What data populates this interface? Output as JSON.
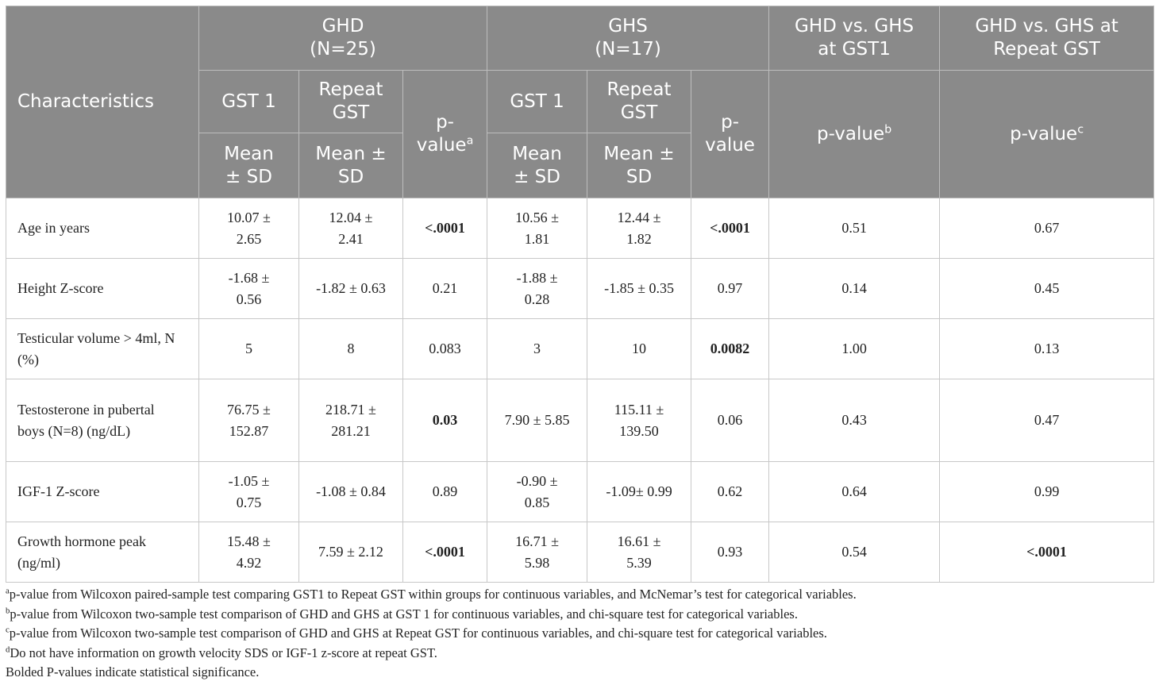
{
  "header": {
    "characteristics": "Characteristics",
    "groups": [
      {
        "name": "GHD",
        "n": "(N=25)"
      },
      {
        "name": "GHS",
        "n": "(N=17)"
      }
    ],
    "gst1": "GST 1",
    "repeat_gst": "Repeat GST",
    "mean_sd": "Mean ± SD",
    "p_value_prefix": "p-value",
    "cmp1": "GHD vs. GHS at GST1",
    "cmp2": "GHD vs. GHS at Repeat GST",
    "sup_a": "a",
    "sup_b": "b",
    "sup_c": "c"
  },
  "rows": [
    {
      "label": "Age in years",
      "ghd_gst1": "10.07 ± 2.65",
      "ghd_rep": "12.04 ± 2.41",
      "ghd_p": "<.0001",
      "ghs_gst1": "10.56 ± 1.81",
      "ghs_rep": "12.44 ± 1.82",
      "ghs_p": "<.0001",
      "p_gst1": "0.51",
      "p_rep": "0.67"
    },
    {
      "label": "Height Z-score",
      "ghd_gst1": "-1.68 ± 0.56",
      "ghd_rep": "-1.82 ± 0.63",
      "ghd_p": "0.21",
      "ghs_gst1": "-1.88 ± 0.28",
      "ghs_rep": "-1.85 ± 0.35",
      "ghs_p": "0.97",
      "p_gst1": "0.14",
      "p_rep": "0.45"
    },
    {
      "label": "Testicular volume > 4ml, N (%)",
      "ghd_gst1": "5",
      "ghd_rep": "8",
      "ghd_p": "0.083",
      "ghs_gst1": "3",
      "ghs_rep": "10",
      "ghs_p": "0.0082",
      "p_gst1": "1.00",
      "p_rep": "0.13"
    },
    {
      "label": "Testosterone in pubertal boys (N=8) (ng/dL)",
      "ghd_gst1": "76.75 ± 152.87",
      "ghd_rep": "218.71 ± 281.21",
      "ghd_p": "0.03",
      "ghs_gst1": "7.90 ± 5.85",
      "ghs_rep": "115.11 ± 139.50",
      "ghs_p": "0.06",
      "p_gst1": "0.43",
      "p_rep": "0.47"
    },
    {
      "label": "IGF-1 Z-score",
      "ghd_gst1": "-1.05 ± 0.75",
      "ghd_rep": "-1.08 ± 0.84",
      "ghd_p": "0.89",
      "ghs_gst1": "-0.90 ± 0.85",
      "ghs_rep": "-1.09± 0.99",
      "ghs_p": "0.62",
      "p_gst1": "0.64",
      "p_rep": "0.99"
    },
    {
      "label": "Growth hormone peak (ng/ml)",
      "ghd_gst1": "15.48 ± 4.92",
      "ghd_rep": "7.59 ± 2.12",
      "ghd_p": "<.0001",
      "ghs_gst1": "16.71 ± 5.98",
      "ghs_rep": "16.61 ± 5.39",
      "ghs_p": "0.93",
      "p_gst1": "0.54",
      "p_rep": "<.0001"
    }
  ],
  "footnotes": [
    {
      "mark": "a",
      "text": "p-value from Wilcoxon paired-sample test comparing GST1 to Repeat GST within groups for continuous variables, and McNemar’s test for categorical variables."
    },
    {
      "mark": "b",
      "text": "p-value from Wilcoxon two-sample test comparison of GHD and GHS at GST 1 for continuous variables, and chi-square test for categorical variables."
    },
    {
      "mark": "c",
      "text": "p-value from Wilcoxon two-sample test comparison of GHD and GHS at Repeat GST for continuous variables, and chi-square test for categorical variables."
    },
    {
      "mark": "d",
      "text": "Do not have information on growth velocity SDS or IGF-1 z-score at repeat GST."
    },
    {
      "mark": "",
      "text": "Bolded P-values indicate statistical significance."
    }
  ]
}
